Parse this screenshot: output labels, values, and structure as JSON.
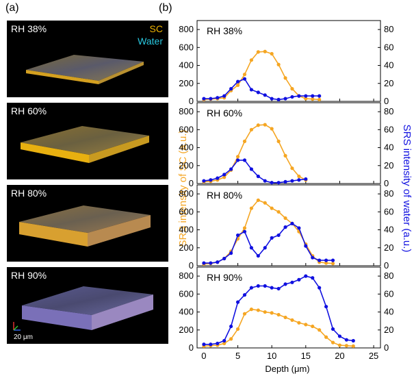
{
  "panel_labels": {
    "a": "(a)",
    "b": "(b)"
  },
  "micrographs": [
    {
      "label": "RH 38%"
    },
    {
      "label": "RH 60%"
    },
    {
      "label": "RH 80%"
    },
    {
      "label": "RH 90%"
    }
  ],
  "image_legend": {
    "sc": "SC",
    "water": "Water",
    "scale_bar": "20 μm"
  },
  "colors": {
    "sc": "#f5a623",
    "water": "#1010e0",
    "sc_text": "#f0b400",
    "water_text": "#29c8e0"
  },
  "chart_data": {
    "type": "line",
    "xlabel": "Depth (μm)",
    "ylabel_left": "SRS intensity of SC (a.u.)",
    "ylabel_right": "SRS intensity of water (a.u.)",
    "xlim": [
      -1,
      26
    ],
    "xticks": [
      0,
      5,
      10,
      15,
      20,
      25
    ],
    "ylim_left": [
      0,
      900
    ],
    "yticks_left": [
      0,
      200,
      400,
      600,
      800
    ],
    "ylim_right": [
      0,
      90
    ],
    "yticks_right": [
      0,
      20,
      40,
      60,
      80
    ],
    "panels": [
      {
        "label": "RH 38%",
        "sc": {
          "x": [
            0,
            1,
            2,
            3,
            4,
            5,
            6,
            7,
            8,
            9,
            10,
            11,
            12,
            13,
            14,
            15,
            16,
            17
          ],
          "y": [
            20,
            25,
            30,
            40,
            120,
            180,
            300,
            460,
            550,
            555,
            530,
            410,
            260,
            140,
            60,
            30,
            25,
            20
          ]
        },
        "water": {
          "x": [
            0,
            1,
            2,
            3,
            4,
            5,
            6,
            7,
            8,
            9,
            10,
            11,
            12,
            13,
            14,
            15,
            16,
            17
          ],
          "y": [
            3,
            3,
            4,
            6,
            14,
            22,
            25,
            13,
            10,
            7,
            3,
            2,
            3,
            5,
            6,
            6,
            6,
            6
          ]
        }
      },
      {
        "label": "RH 60%",
        "sc": {
          "x": [
            0,
            1,
            2,
            3,
            4,
            5,
            6,
            7,
            8,
            9,
            10,
            11,
            12,
            13,
            14,
            15
          ],
          "y": [
            20,
            25,
            40,
            70,
            150,
            300,
            470,
            600,
            650,
            655,
            610,
            470,
            310,
            170,
            80,
            40
          ]
        },
        "water": {
          "x": [
            0,
            1,
            2,
            3,
            4,
            5,
            6,
            7,
            8,
            9,
            10,
            11,
            12,
            13,
            14,
            15
          ],
          "y": [
            3,
            4,
            6,
            10,
            16,
            26,
            26,
            16,
            8,
            3,
            1,
            1,
            2,
            3,
            4,
            5
          ]
        }
      },
      {
        "label": "RH 80%",
        "sc": {
          "x": [
            0,
            1,
            2,
            3,
            4,
            5,
            6,
            7,
            8,
            9,
            10,
            11,
            12,
            13,
            14,
            15,
            16,
            17,
            18,
            19
          ],
          "y": [
            20,
            25,
            40,
            80,
            160,
            300,
            420,
            640,
            730,
            700,
            640,
            600,
            530,
            470,
            380,
            240,
            110,
            40,
            30,
            25
          ]
        },
        "water": {
          "x": [
            0,
            1,
            2,
            3,
            4,
            5,
            6,
            7,
            8,
            9,
            10,
            11,
            12,
            13,
            14,
            15,
            16,
            17,
            18,
            19
          ],
          "y": [
            3,
            3,
            4,
            8,
            14,
            34,
            38,
            20,
            11,
            20,
            31,
            34,
            43,
            47,
            42,
            22,
            9,
            6,
            6,
            6
          ]
        }
      },
      {
        "label": "RH 90%",
        "sc": {
          "x": [
            0,
            1,
            2,
            3,
            4,
            5,
            6,
            7,
            8,
            9,
            10,
            11,
            12,
            13,
            14,
            15,
            16,
            17,
            18,
            19,
            20,
            21,
            22
          ],
          "y": [
            20,
            25,
            30,
            50,
            100,
            210,
            380,
            430,
            420,
            400,
            390,
            370,
            340,
            310,
            280,
            260,
            240,
            200,
            120,
            60,
            30,
            25,
            20
          ]
        },
        "water": {
          "x": [
            0,
            1,
            2,
            3,
            4,
            5,
            6,
            7,
            8,
            9,
            10,
            11,
            12,
            13,
            14,
            15,
            16,
            17,
            18,
            19,
            20,
            21,
            22
          ],
          "y": [
            4,
            4,
            5,
            8,
            24,
            51,
            59,
            67,
            69,
            69,
            67,
            66,
            71,
            73,
            76,
            80,
            78,
            67,
            46,
            21,
            13,
            9,
            8
          ]
        }
      }
    ]
  }
}
